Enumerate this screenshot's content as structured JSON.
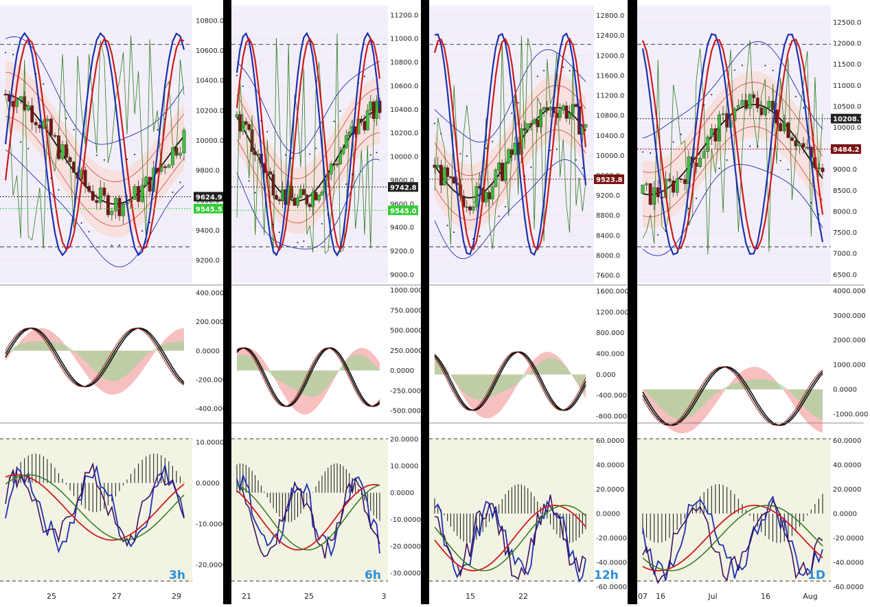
{
  "colors": {
    "bull": "#3fbf3f",
    "bear": "#7a1414",
    "blueLine": "#1a2fb0",
    "redLine": "#cc1a1a",
    "greenLine": "#2a7a1a",
    "band": "#f7dcd6",
    "panelTint": "#f3effa",
    "oscTint": "#f3f3e3",
    "annot": "#2a8fd8"
  },
  "chart_data": [
    {
      "type": "line",
      "timeframe": "3h",
      "price": {
        "ylim": [
          9050,
          10900
        ],
        "ticks": [
          "10800.0",
          "10600.0",
          "10400.0",
          "10200.0",
          "10000.0",
          "9800.0",
          "9600.0",
          "9400.0",
          "9200.0"
        ],
        "tick_values": [
          10800,
          10600,
          10400,
          10200,
          10000,
          9800,
          9600,
          9400,
          9200
        ],
        "tags": [
          {
            "text": "9624.9",
            "value": 9624.9,
            "color": "#222222"
          },
          {
            "text": "9545.5",
            "value": 9545.5,
            "color": "#33cc33"
          }
        ]
      },
      "macd": {
        "ylim": [
          -480,
          440
        ],
        "ticks": [
          "400.0000",
          "200.0000",
          "0.0000",
          "-200.0000",
          "-400.0000"
        ],
        "tick_values": [
          400,
          200,
          0,
          -200,
          -400
        ]
      },
      "osc": {
        "ylim": [
          -26,
          14
        ],
        "ticks": [
          "10.0000",
          "0.0000",
          "-10.0000",
          "-20.0000"
        ],
        "tick_values": [
          10,
          0,
          -10,
          -20
        ]
      },
      "x_ticks": [
        "25",
        "27",
        "29"
      ]
    },
    {
      "type": "line",
      "timeframe": "6h",
      "price": {
        "ylim": [
          8930,
          11280
        ],
        "ticks": [
          "11200.0",
          "11000.0",
          "10800.0",
          "10600.0",
          "10400.0",
          "10200.0",
          "10000.0",
          "9800.0",
          "9600.0",
          "9400.0",
          "9200.0",
          "9000.0"
        ],
        "tick_values": [
          11200,
          11000,
          10800,
          10600,
          10400,
          10200,
          10000,
          9800,
          9600,
          9400,
          9200,
          9000
        ],
        "tags": [
          {
            "text": "9742.8",
            "value": 9742.8,
            "color": "#222222"
          },
          {
            "text": "9545.0",
            "value": 9545.0,
            "color": "#33cc33"
          }
        ]
      },
      "macd": {
        "ylim": [
          -620,
          1040
        ],
        "ticks": [
          "1000.0000",
          "750.0000",
          "500.0000",
          "250.0000",
          "0.0000",
          "-250.0000",
          "-500.0000"
        ],
        "tick_values": [
          1000,
          750,
          500,
          250,
          0,
          -250,
          -500
        ]
      },
      "osc": {
        "ylim": [
          -36,
          25
        ],
        "ticks": [
          "20.0000",
          "10.0000",
          "0.0000",
          "-10.0000",
          "-20.0000",
          "-30.0000"
        ],
        "tick_values": [
          20,
          10,
          0,
          -10,
          -20,
          -30
        ]
      },
      "x_ticks": [
        "21",
        "25",
        "3"
      ]
    },
    {
      "type": "line",
      "timeframe": "12h",
      "price": {
        "ylim": [
          7450,
          13000
        ],
        "ticks": [
          "12800.0",
          "12400.0",
          "12000.0",
          "11600.0",
          "11200.0",
          "10800.0",
          "10400.0",
          "10000.0",
          "9600.0",
          "9200.0",
          "8800.0",
          "8400.0",
          "8000.0",
          "7600.0"
        ],
        "tick_values": [
          12800,
          12400,
          12000,
          11600,
          11200,
          10800,
          10400,
          10000,
          9600,
          9200,
          8800,
          8400,
          8000,
          7600
        ],
        "tags": [
          {
            "text": "9523.8",
            "value": 9523.8,
            "color": "#7a1414"
          }
        ]
      },
      "macd": {
        "ylim": [
          -880,
          1680
        ],
        "ticks": [
          "1600.000",
          "1200.000",
          "800.000",
          "400.000",
          "0.000",
          "-400.000",
          "-800.000"
        ],
        "tick_values": [
          1600,
          1200,
          800,
          400,
          0,
          -400,
          -800
        ]
      },
      "osc": {
        "ylim": [
          -62,
          72
        ],
        "ticks": [
          "60.0000",
          "40.0000",
          "20.0000",
          "0.0000",
          "-20.0000",
          "-40.0000",
          "-60.0000"
        ],
        "tick_values": [
          60,
          40,
          20,
          0,
          -20,
          -40,
          -60
        ]
      },
      "x_ticks": [
        "15",
        "22"
      ]
    },
    {
      "type": "line",
      "timeframe": "1D",
      "price": {
        "ylim": [
          6300,
          12900
        ],
        "ticks": [
          "12500.0",
          "12000.0",
          "11500.0",
          "11000.0",
          "10500.0",
          "10000.0",
          "9500.0",
          "9000.0",
          "8500.0",
          "8000.0",
          "7500.0",
          "7000.0",
          "6500.0"
        ],
        "tick_values": [
          12500,
          12000,
          11500,
          11000,
          10500,
          10000,
          9500,
          9000,
          8500,
          8000,
          7500,
          7000,
          6500
        ],
        "tags": [
          {
            "text": "10208.7",
            "value": 10208.7,
            "color": "#222222"
          },
          {
            "text": "9484.2",
            "value": 9484.2,
            "color": "#7a1414"
          }
        ]
      },
      "macd": {
        "ylim": [
          -1250,
          4150
        ],
        "ticks": [
          "4000.000",
          "3000.000",
          "2000.000",
          "1000.000",
          "0.0000",
          "-1000.000"
        ],
        "tick_values": [
          4000,
          3000,
          2000,
          1000,
          0,
          -1000
        ]
      },
      "osc": {
        "ylim": [
          -62,
          72
        ],
        "ticks": [
          "60.0000",
          "40.0000",
          "20.0000",
          "0.0000",
          "-20.0000",
          "-40.0000",
          "-60.0000"
        ],
        "tick_values": [
          60,
          40,
          20,
          0,
          -20,
          -40,
          -60
        ]
      },
      "x_ticks": [
        "07",
        "16",
        "Jul",
        "16",
        "Aug"
      ]
    }
  ]
}
